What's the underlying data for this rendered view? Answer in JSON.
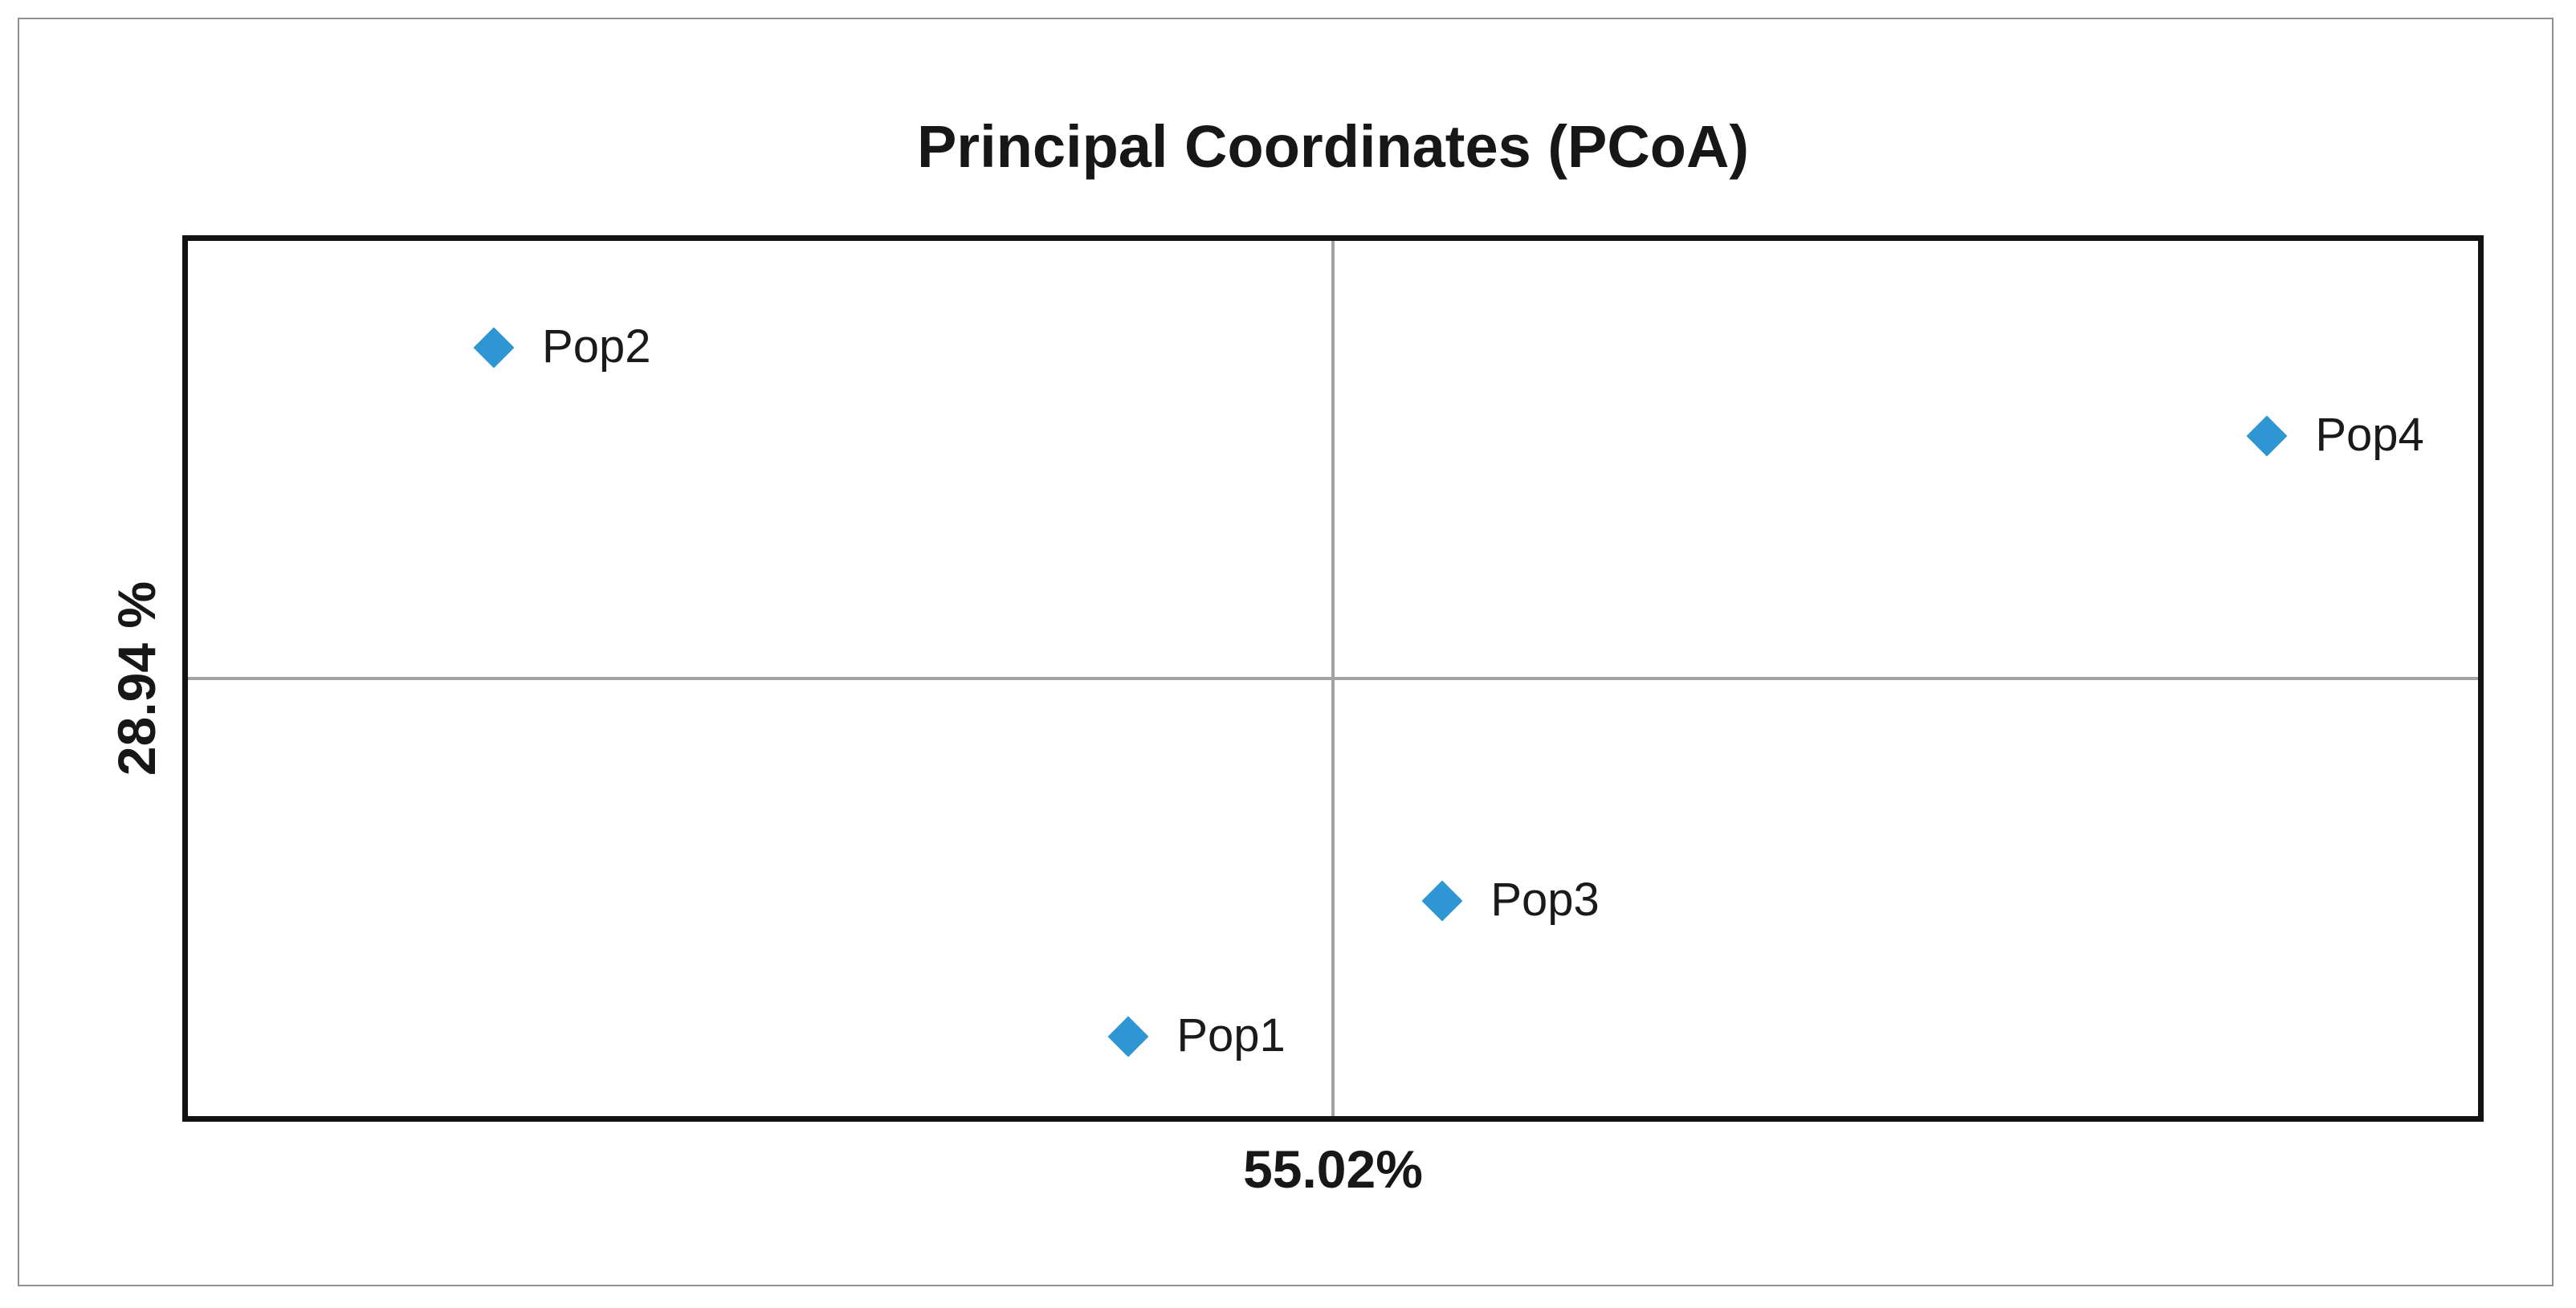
{
  "figure": {
    "title": "Principal Coordinates (PCoA)",
    "x_axis_label": "55.02%",
    "y_axis_label": "28.94 %"
  },
  "colors": {
    "marker_fill": "#2e96d2",
    "plot_border": "#121212",
    "crosshair_line": "#a3a3a3",
    "outer_frame_border": "#8f8f8f",
    "text": "#171717",
    "background": "#ffffff"
  },
  "chart_data": {
    "type": "scatter",
    "title": "Principal Coordinates (PCoA)",
    "xlabel": "55.02%",
    "ylabel": "28.94 %",
    "marker": "diamond",
    "marker_color": "#2e96d2",
    "legend": "none",
    "grid": "center crosshair axes only; no tick marks or tick labels shown",
    "xlim": [
      -1,
      1
    ],
    "ylim": [
      -1,
      1
    ],
    "points": [
      {
        "label": "Pop1",
        "x": -0.18,
        "y": -0.82,
        "fx": 0.4107,
        "fy": 0.9094
      },
      {
        "label": "Pop2",
        "x": -0.73,
        "y": 0.76,
        "fx": 0.1336,
        "fy": 0.1223
      },
      {
        "label": "Pop3",
        "x": 0.1,
        "y": -0.51,
        "fx": 0.5478,
        "fy": 0.7545
      },
      {
        "label": "Pop4",
        "x": 0.82,
        "y": 0.55,
        "fx": 0.9079,
        "fy": 0.2228
      }
    ]
  }
}
